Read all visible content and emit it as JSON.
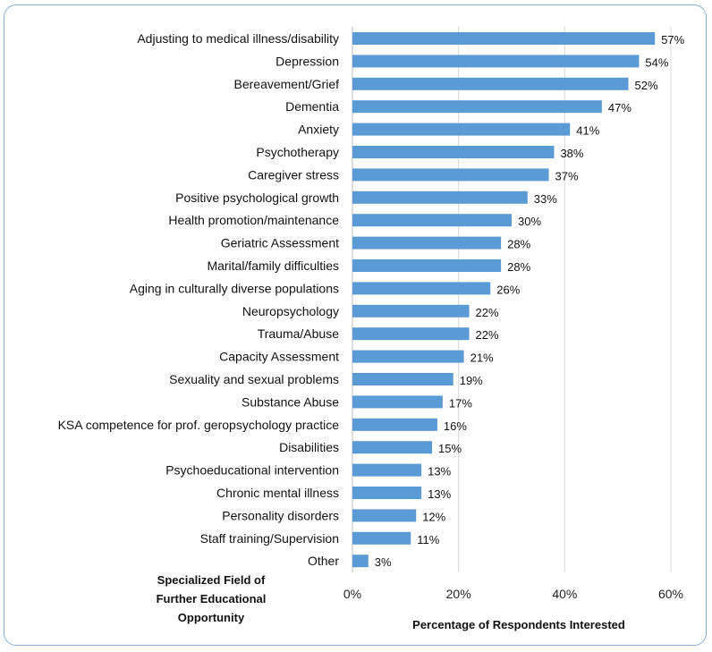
{
  "chart_data": {
    "type": "bar",
    "orientation": "horizontal",
    "categories": [
      "Adjusting to medical illness/disability",
      "Depression",
      "Bereavement/Grief",
      "Dementia",
      "Anxiety",
      "Psychotherapy",
      "Caregiver stress",
      "Positive psychological growth",
      "Health promotion/maintenance",
      "Geriatric Assessment",
      "Marital/family difficulties",
      "Aging in culturally diverse populations",
      "Neuropsychology",
      "Trauma/Abuse",
      "Capacity Assessment",
      "Sexuality and sexual problems",
      "Substance Abuse",
      "KSA competence for prof. geropsychology practice",
      "Disabilities",
      "Psychoeducational intervention",
      "Chronic mental illness",
      "Personality disorders",
      "Staff training/Supervision",
      "Other"
    ],
    "values": [
      57,
      54,
      52,
      47,
      41,
      38,
      37,
      33,
      30,
      28,
      28,
      26,
      22,
      22,
      21,
      19,
      17,
      16,
      15,
      13,
      13,
      12,
      11,
      3
    ],
    "data_labels": [
      "57%",
      "54%",
      "52%",
      "47%",
      "41%",
      "38%",
      "37%",
      "33%",
      "30%",
      "28%",
      "28%",
      "26%",
      "22%",
      "22%",
      "21%",
      "19%",
      "17%",
      "16%",
      "15%",
      "13%",
      "13%",
      "12%",
      "11%",
      "3%"
    ],
    "xlabel": "Percentage of Respondents Interested",
    "ylabel_lines": [
      "Specialized Field of",
      "Further Educational",
      "Opportunity"
    ],
    "xlim": [
      0,
      60
    ],
    "xticks": [
      "0%",
      "20%",
      "40%",
      "60%"
    ],
    "grid": "vertical",
    "legend": "none",
    "bar_color": "#5b9bd5",
    "frame_color": "#8aaed0"
  }
}
